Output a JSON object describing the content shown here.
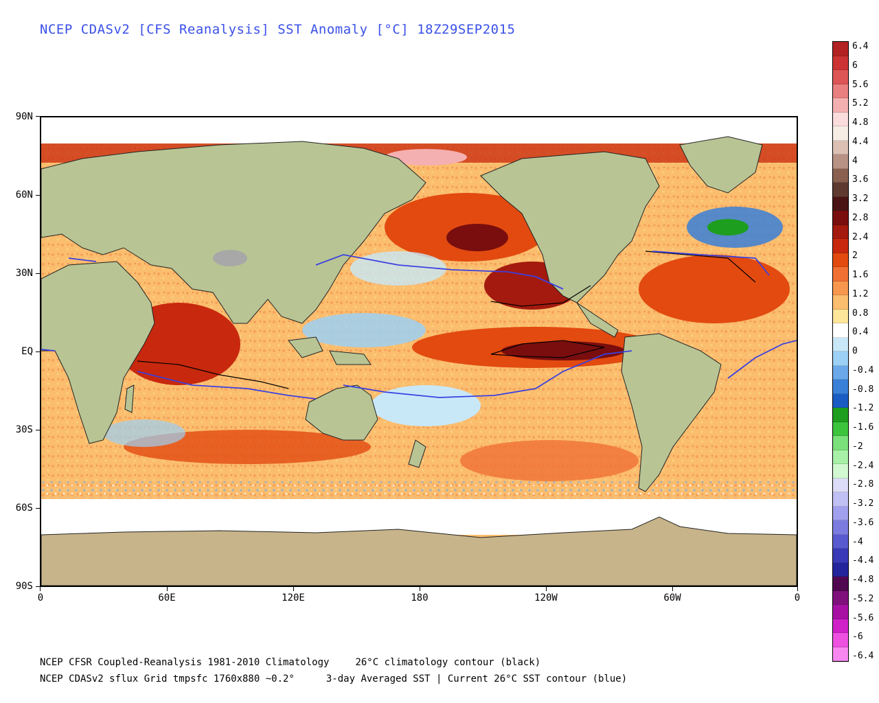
{
  "title": "NCEP CDASv2 [CFS Reanalysis] SST Anomaly [°C] 18Z29SEP2015",
  "axes": {
    "y_labels": [
      "90N",
      "60N",
      "30N",
      "EQ",
      "30S",
      "60S",
      "90S"
    ],
    "x_labels": [
      "0",
      "60E",
      "120E",
      "180",
      "120W",
      "60W",
      "0"
    ]
  },
  "colorbar": {
    "labels": [
      "6.4",
      "6",
      "5.6",
      "5.2",
      "4.8",
      "4.4",
      "4",
      "3.6",
      "3.2",
      "2.8",
      "2.4",
      "2",
      "1.6",
      "1.2",
      "0.8",
      "0.4",
      "0",
      "-0.4",
      "-0.8",
      "-1.2",
      "-1.6",
      "-2",
      "-2.4",
      "-2.8",
      "-3.2",
      "-3.6",
      "-4",
      "-4.4",
      "-4.8",
      "-5.2",
      "-5.6",
      "-6",
      "-6.4"
    ],
    "colors": [
      "#b22222",
      "#cc3333",
      "#dd5555",
      "#e98080",
      "#f4b0b0",
      "#fbdcdc",
      "#f6ede4",
      "#dcc0b4",
      "#b89284",
      "#8a6050",
      "#5e3a30",
      "#4a1414",
      "#7a0e0e",
      "#a41a0e",
      "#c8280e",
      "#e24a10",
      "#f07034",
      "#f7974e",
      "#fbbd6e",
      "#fde69a",
      "#ffffff",
      "#c8e8f8",
      "#9cd0f4",
      "#6aa8ea",
      "#3a80d8",
      "#1a5cc4",
      "#1e9e1e",
      "#3cc43c",
      "#7ae07a",
      "#a8f0a8",
      "#d2f8d2",
      "#dcdcf8",
      "#c0c0f4",
      "#a0a0ee",
      "#7c7ce0",
      "#5a5ad0",
      "#3a3ab8",
      "#24249c",
      "#500850",
      "#80107c",
      "#a810a4",
      "#d020c8",
      "#ee50e0",
      "#f888f0"
    ]
  },
  "footer": {
    "line1_left": "NCEP CFSR Coupled-Reanalysis 1981-2010 Climatology",
    "line1_right": "26°C climatology contour (black)",
    "line2_left": "NCEP CDASv2 sflux Grid tmpsfc 1760x880 ~0.2°",
    "line2_right": "3-day Averaged SST | Current 26°C SST contour (blue)"
  }
}
